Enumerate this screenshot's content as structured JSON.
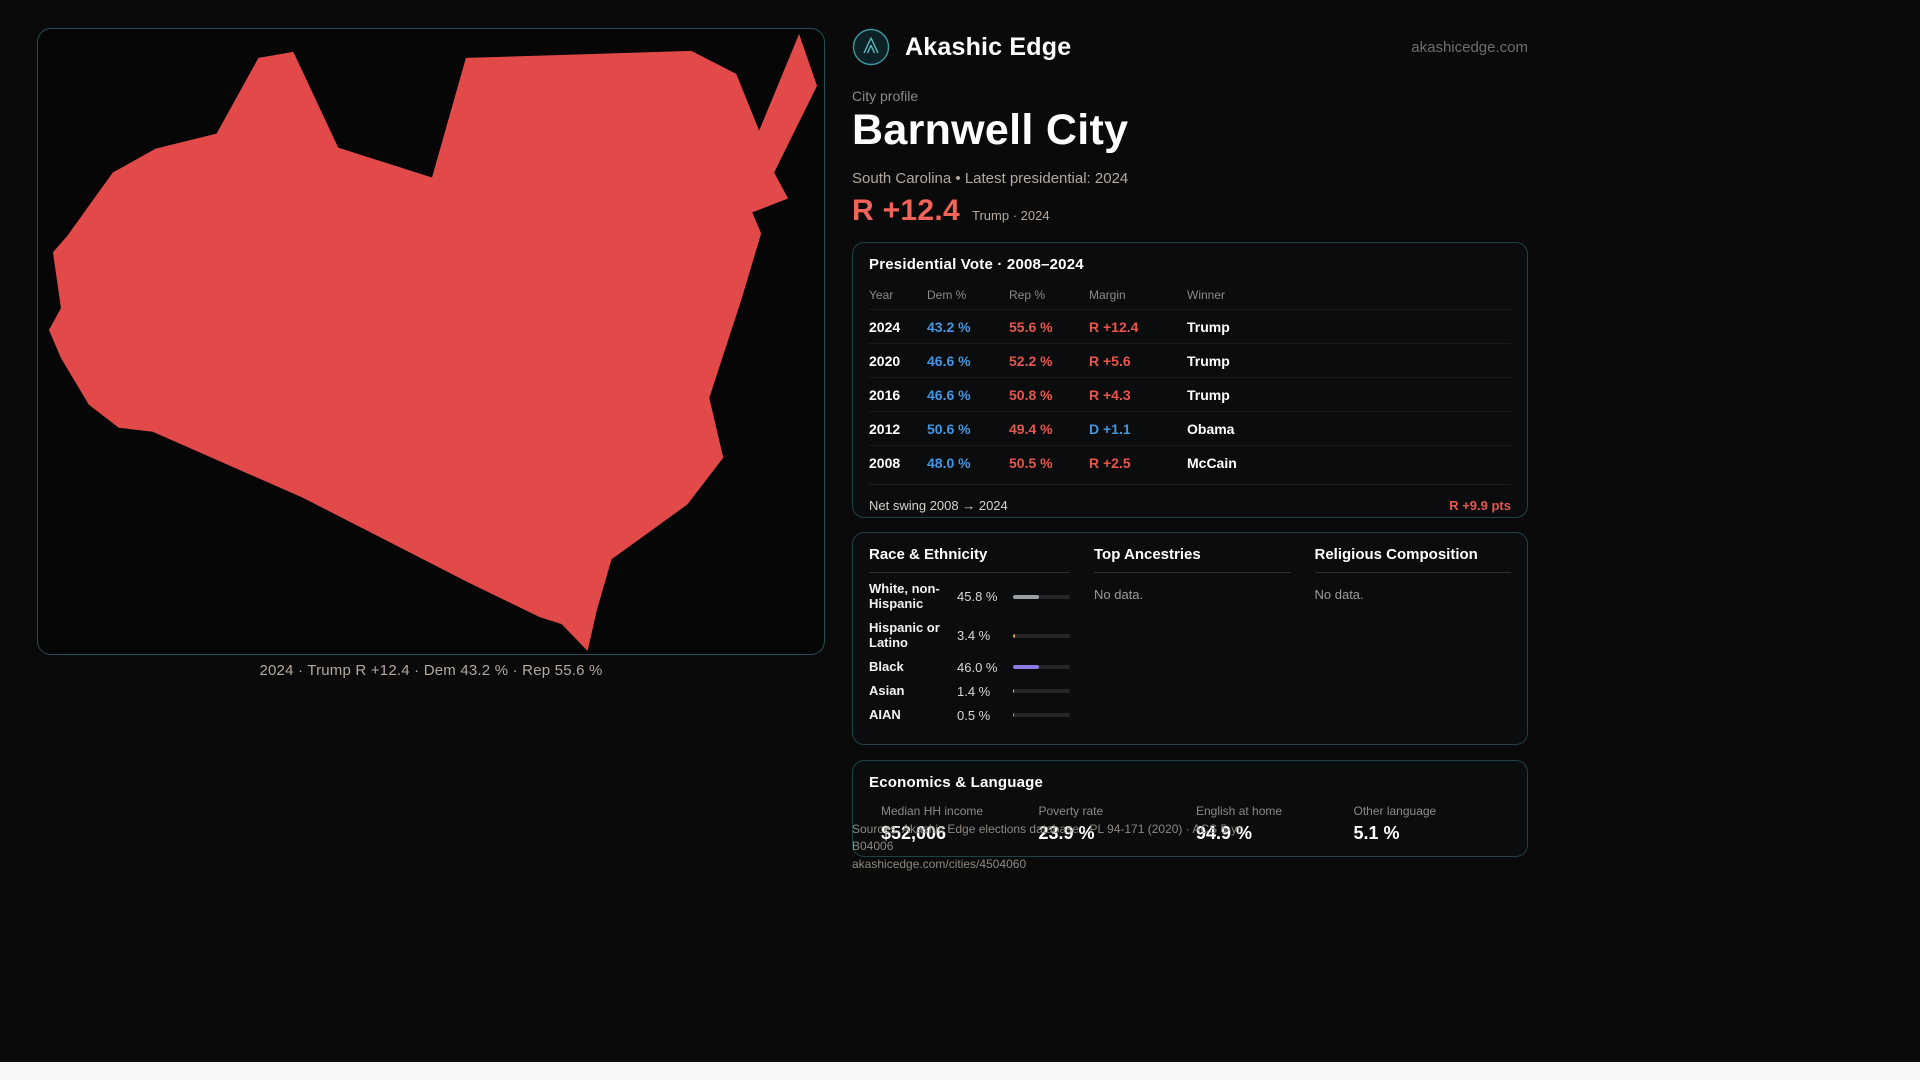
{
  "site": {
    "brand": "Akashic Edge",
    "domain": "akashicedge.com"
  },
  "profile": {
    "eyebrow": "City profile",
    "title": "Barnwell City",
    "subtitle": "South Carolina • Latest presidential: 2024",
    "headline_margin": "R +12.4",
    "headline_context": "Trump · 2024"
  },
  "map": {
    "caption": "2024 · Trump R +12.4 · Dem 43.2 % · Rep 55.6 %",
    "shape_color": "#e24a4a"
  },
  "colors": {
    "dem_blue": "#4596e0",
    "rep_red": "#e8564c",
    "headline_red": "#f2635a",
    "panel_border_teal": "#1d4347",
    "logo_teal": "#54c2c9"
  },
  "vote_table": {
    "title": "Presidential Vote · 2008–2024",
    "headers": [
      "Year",
      "Dem %",
      "Rep %",
      "Margin",
      "Winner"
    ],
    "rows": [
      {
        "year": "2024",
        "dem": "43.2 %",
        "rep": "55.6 %",
        "margin": "R +12.4",
        "margin_side": "R",
        "winner": "Trump"
      },
      {
        "year": "2020",
        "dem": "46.6 %",
        "rep": "52.2 %",
        "margin": "R +5.6",
        "margin_side": "R",
        "winner": "Trump"
      },
      {
        "year": "2016",
        "dem": "46.6 %",
        "rep": "50.8 %",
        "margin": "R +4.3",
        "margin_side": "R",
        "winner": "Trump"
      },
      {
        "year": "2012",
        "dem": "50.6 %",
        "rep": "49.4 %",
        "margin": "D +1.1",
        "margin_side": "D",
        "winner": "Obama"
      },
      {
        "year": "2008",
        "dem": "48.0 %",
        "rep": "50.5 %",
        "margin": "R +2.5",
        "margin_side": "R",
        "winner": "McCain"
      }
    ],
    "footer_label": "Net swing 2008 → 2024",
    "footer_value": "R +9.9 pts"
  },
  "demographics": {
    "race": {
      "title": "Race & Ethnicity",
      "rows": [
        {
          "label": "White, non-Hispanic",
          "value": "45.8 %",
          "pct": 45.8,
          "bar_color": "#9aa0a6"
        },
        {
          "label": "Hispanic or Latino",
          "value": "3.4 %",
          "pct": 3.4,
          "bar_color": "#e09b3d"
        },
        {
          "label": "Black",
          "value": "46.0 %",
          "pct": 46.0,
          "bar_color": "#8b7be0"
        },
        {
          "label": "Asian",
          "value": "1.4 %",
          "pct": 1.4,
          "bar_color": "#bfc4c9"
        },
        {
          "label": "AIAN",
          "value": "0.5 %",
          "pct": 0.5,
          "bar_color": "#9aa0a6"
        }
      ]
    },
    "ancestries": {
      "title": "Top Ancestries",
      "empty": "No data."
    },
    "religion": {
      "title": "Religious Composition",
      "empty": "No data."
    }
  },
  "economics": {
    "title": "Economics & Language",
    "stats": [
      {
        "label": "Median HH income",
        "value": "$52,006"
      },
      {
        "label": "Poverty rate",
        "value": "23.9 %"
      },
      {
        "label": "English at home",
        "value": "94.9 %"
      },
      {
        "label": "Other language",
        "value": "5.1 %"
      }
    ]
  },
  "footer": {
    "sources": "Sources: Akashic Edge elections database · PL 94-171 (2020) · ACS 5-yr B04006",
    "permalink": "akashicedge.com/cities/4504060"
  }
}
